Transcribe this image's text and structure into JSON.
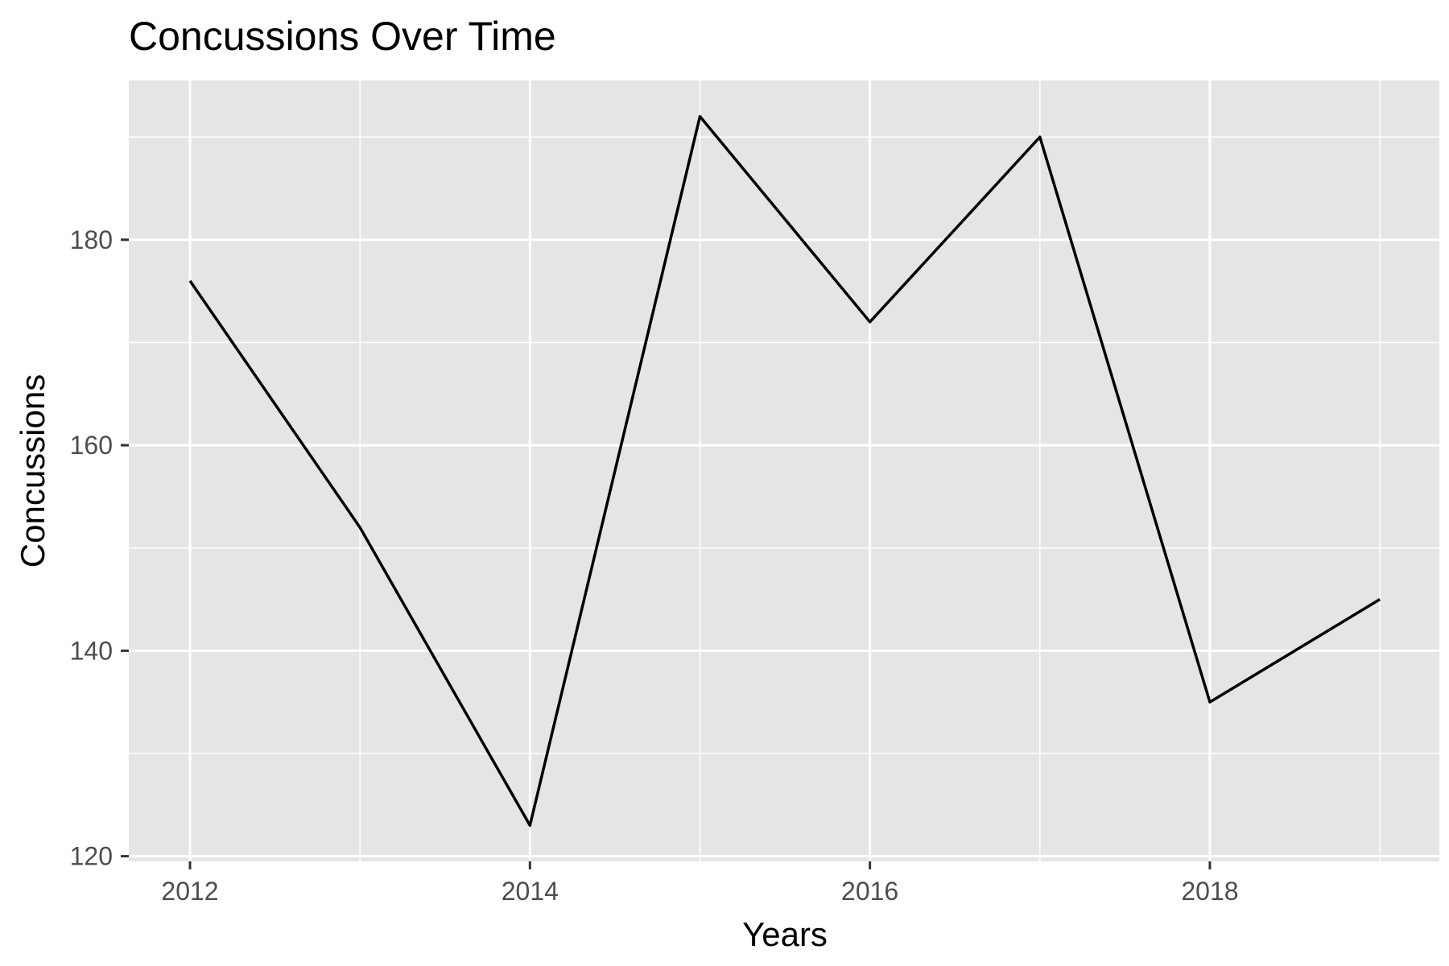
{
  "chart_data": {
    "type": "line",
    "title": "Concussions Over Time",
    "xlabel": "Years",
    "ylabel": "Concussions",
    "x": [
      2012,
      2013,
      2014,
      2015,
      2016,
      2017,
      2018,
      2019
    ],
    "series": [
      {
        "values": [
          176,
          152,
          123,
          192,
          172,
          190,
          135,
          145
        ]
      }
    ],
    "xlim": [
      2011.64,
      2019.35
    ],
    "ylim": [
      119.5,
      195.5
    ],
    "x_ticks": [
      2012,
      2014,
      2016,
      2018
    ],
    "y_ticks": [
      120,
      140,
      160,
      180
    ],
    "grid": true,
    "legend": "none",
    "colors": {
      "panel_background": "#e5e5e5",
      "grid": "#ffffff",
      "line": "#000000",
      "tick_label": "#4d4d4d"
    }
  }
}
